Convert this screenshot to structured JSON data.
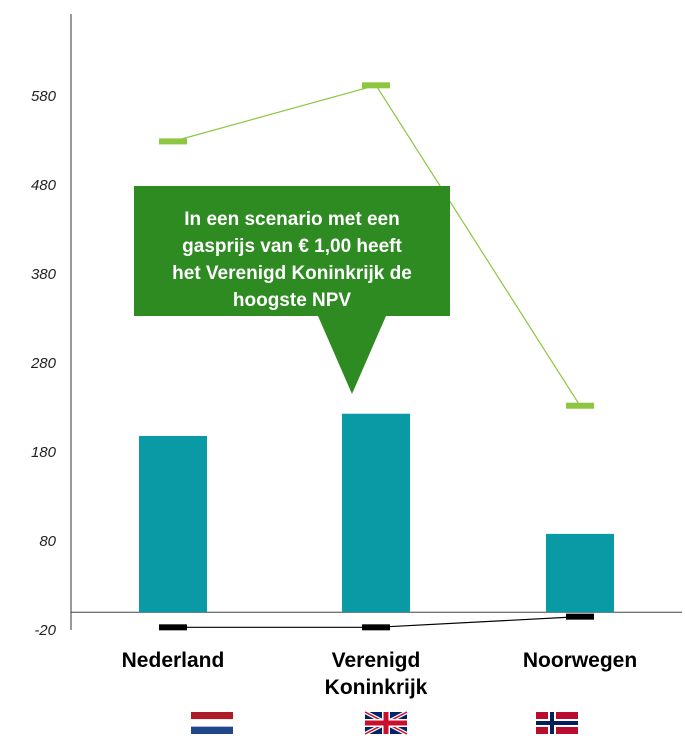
{
  "chart_data": {
    "type": "bar",
    "categories": [
      "Nederland",
      "Verenigd Koninkrijk",
      "Noorwegen"
    ],
    "category_lines": [
      [
        "Nederland"
      ],
      [
        "Verenigd",
        "Koninkrijk"
      ],
      [
        "Noorwegen"
      ]
    ],
    "yticks": [
      -20,
      80,
      180,
      280,
      380,
      480,
      580
    ],
    "ylim": [
      -20,
      645
    ],
    "series": [
      {
        "kind": "bar",
        "values": [
          198,
          223,
          88
        ],
        "color": "#0a9aa6"
      },
      {
        "kind": "high",
        "values": [
          529,
          592,
          232
        ],
        "color": "#8dc63f"
      },
      {
        "kind": "low",
        "values": [
          -17,
          -17,
          -5
        ],
        "color": "#000000"
      }
    ],
    "callout": {
      "lines": [
        "In een scenario met een",
        "gasprijs van € 1,00 heeft",
        "het Verenigd Koninkrijk de",
        "hoogste NPV"
      ],
      "color": "#2e8b22"
    },
    "flags": [
      "netherlands-flag",
      "uk-flag",
      "norway-flag"
    ]
  }
}
